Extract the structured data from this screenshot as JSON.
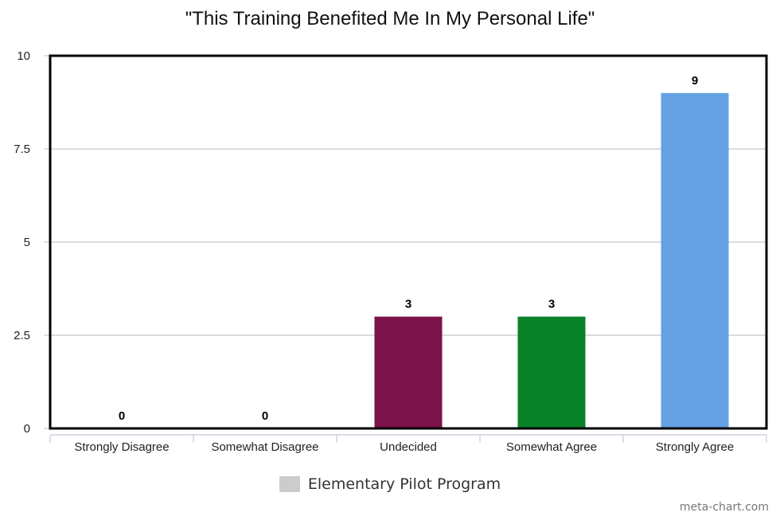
{
  "chart_data": {
    "type": "bar",
    "title": "\"This Training Benefited Me In My Personal Life\"",
    "categories": [
      "Strongly Disagree",
      "Somewhat Disagree",
      "Undecided",
      "Somewhat Agree",
      "Strongly Agree"
    ],
    "series": [
      {
        "name": "Elementary Pilot Program",
        "values": [
          0,
          0,
          3,
          3,
          9
        ],
        "colors": [
          "#cccccc",
          "#cccccc",
          "#7b1248",
          "#088228",
          "#64a1e3"
        ]
      }
    ],
    "yticks": [
      "0",
      "2.5",
      "5",
      "7.5",
      "10"
    ],
    "ylim": [
      0,
      10
    ],
    "grid": true,
    "data_labels": true,
    "legend_position": "bottom-center",
    "legend_color": "#cccccc"
  },
  "credit": "meta-chart.com"
}
